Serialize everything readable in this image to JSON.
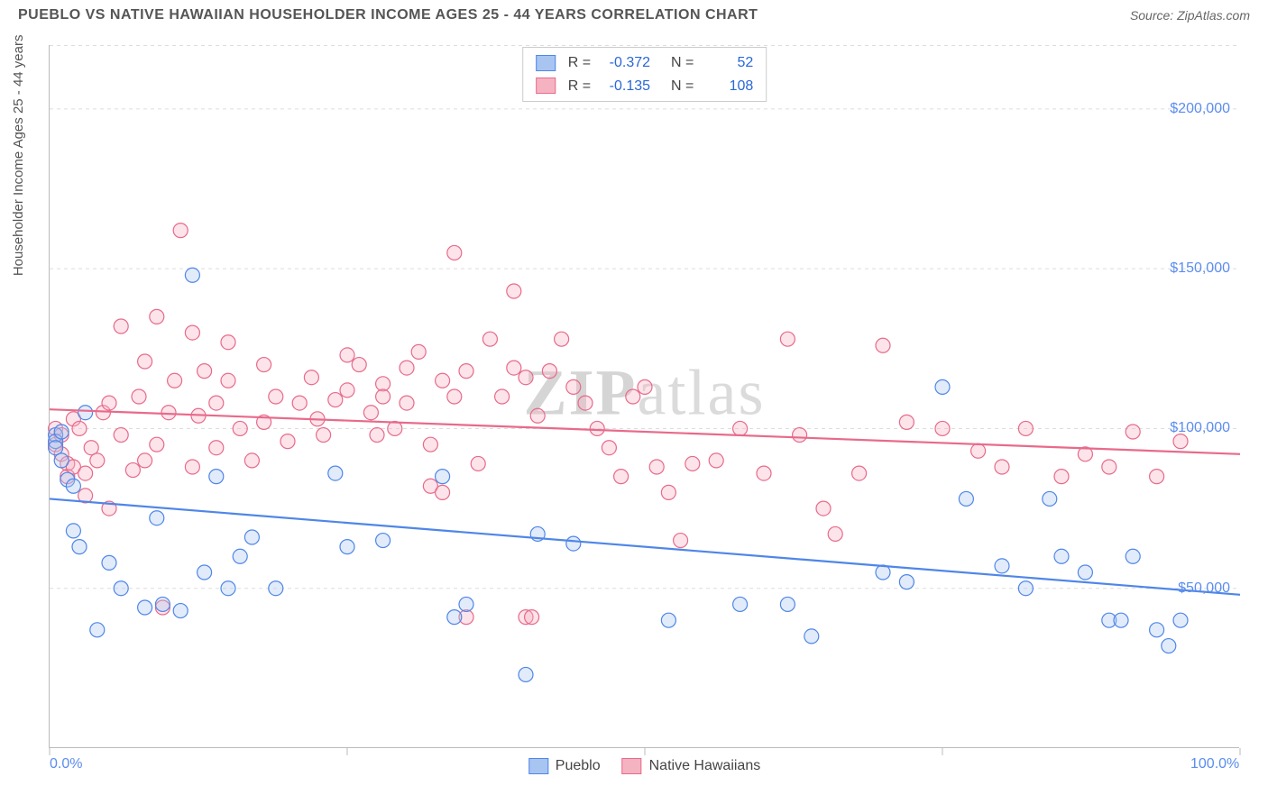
{
  "title": "PUEBLO VS NATIVE HAWAIIAN HOUSEHOLDER INCOME AGES 25 - 44 YEARS CORRELATION CHART",
  "source": "Source: ZipAtlas.com",
  "ylabel": "Householder Income Ages 25 - 44 years",
  "watermark_bold": "ZIP",
  "watermark_rest": "atlas",
  "chart": {
    "type": "scatter",
    "xlim": [
      0,
      100
    ],
    "ylim": [
      0,
      220000
    ],
    "x_ticks": [
      0,
      100
    ],
    "x_tick_labels": [
      "0.0%",
      "100.0%"
    ],
    "x_minor_ticks": [
      25,
      50,
      75
    ],
    "y_ticks": [
      50000,
      100000,
      150000,
      200000
    ],
    "y_tick_labels": [
      "$50,000",
      "$100,000",
      "$150,000",
      "$200,000"
    ],
    "background_color": "#ffffff",
    "grid_color": "#dddddd",
    "axis_color": "#bbbbbb",
    "tick_label_color": "#5b8def",
    "marker_radius": 8,
    "marker_stroke_width": 1.2,
    "marker_fill_opacity": 0.35,
    "line_width": 2.2,
    "series": [
      {
        "name": "Pueblo",
        "color_stroke": "#4f86e8",
        "color_fill": "#a8c5f2",
        "R": "-0.372",
        "N": "52",
        "regression": {
          "y_at_x0": 78000,
          "y_at_x100": 48000
        },
        "points": [
          [
            0.5,
            98000
          ],
          [
            0.5,
            96000
          ],
          [
            0.5,
            94000
          ],
          [
            1,
            99000
          ],
          [
            1,
            90000
          ],
          [
            1.5,
            84000
          ],
          [
            2,
            82000
          ],
          [
            2,
            68000
          ],
          [
            2.5,
            63000
          ],
          [
            3,
            105000
          ],
          [
            4,
            37000
          ],
          [
            5,
            58000
          ],
          [
            6,
            50000
          ],
          [
            8,
            44000
          ],
          [
            9,
            72000
          ],
          [
            9.5,
            45000
          ],
          [
            11,
            43000
          ],
          [
            12,
            148000
          ],
          [
            13,
            55000
          ],
          [
            14,
            85000
          ],
          [
            15,
            50000
          ],
          [
            16,
            60000
          ],
          [
            17,
            66000
          ],
          [
            19,
            50000
          ],
          [
            24,
            86000
          ],
          [
            25,
            63000
          ],
          [
            28,
            65000
          ],
          [
            33,
            85000
          ],
          [
            34,
            41000
          ],
          [
            35,
            45000
          ],
          [
            40,
            23000
          ],
          [
            41,
            67000
          ],
          [
            44,
            64000
          ],
          [
            52,
            40000
          ],
          [
            58,
            45000
          ],
          [
            62,
            45000
          ],
          [
            64,
            35000
          ],
          [
            70,
            55000
          ],
          [
            72,
            52000
          ],
          [
            75,
            113000
          ],
          [
            77,
            78000
          ],
          [
            80,
            57000
          ],
          [
            82,
            50000
          ],
          [
            84,
            78000
          ],
          [
            85,
            60000
          ],
          [
            87,
            55000
          ],
          [
            89,
            40000
          ],
          [
            90,
            40000
          ],
          [
            91,
            60000
          ],
          [
            93,
            37000
          ],
          [
            94,
            32000
          ],
          [
            95,
            40000
          ]
        ]
      },
      {
        "name": "Native Hawaiians",
        "color_stroke": "#e86a8a",
        "color_fill": "#f5b3c2",
        "R": "-0.135",
        "N": "108",
        "regression": {
          "y_at_x0": 106000,
          "y_at_x100": 92000
        },
        "points": [
          [
            0.5,
            100000
          ],
          [
            0.5,
            95000
          ],
          [
            1,
            98000
          ],
          [
            1,
            92000
          ],
          [
            1.5,
            89000
          ],
          [
            1.5,
            85000
          ],
          [
            2,
            103000
          ],
          [
            2,
            88000
          ],
          [
            2.5,
            100000
          ],
          [
            3,
            86000
          ],
          [
            3,
            79000
          ],
          [
            3.5,
            94000
          ],
          [
            4,
            90000
          ],
          [
            4.5,
            105000
          ],
          [
            5,
            108000
          ],
          [
            5,
            75000
          ],
          [
            6,
            132000
          ],
          [
            6,
            98000
          ],
          [
            7,
            87000
          ],
          [
            7.5,
            110000
          ],
          [
            8,
            121000
          ],
          [
            8,
            90000
          ],
          [
            9,
            135000
          ],
          [
            9,
            95000
          ],
          [
            9.5,
            44000
          ],
          [
            10,
            105000
          ],
          [
            10.5,
            115000
          ],
          [
            11,
            162000
          ],
          [
            12,
            88000
          ],
          [
            12,
            130000
          ],
          [
            12.5,
            104000
          ],
          [
            13,
            118000
          ],
          [
            14,
            94000
          ],
          [
            14,
            108000
          ],
          [
            15,
            127000
          ],
          [
            15,
            115000
          ],
          [
            16,
            100000
          ],
          [
            17,
            90000
          ],
          [
            18,
            102000
          ],
          [
            18,
            120000
          ],
          [
            19,
            110000
          ],
          [
            20,
            96000
          ],
          [
            21,
            108000
          ],
          [
            22,
            116000
          ],
          [
            22.5,
            103000
          ],
          [
            23,
            98000
          ],
          [
            24,
            109000
          ],
          [
            25,
            123000
          ],
          [
            25,
            112000
          ],
          [
            26,
            120000
          ],
          [
            27,
            105000
          ],
          [
            27.5,
            98000
          ],
          [
            28,
            114000
          ],
          [
            28,
            110000
          ],
          [
            29,
            100000
          ],
          [
            30,
            119000
          ],
          [
            30,
            108000
          ],
          [
            31,
            124000
          ],
          [
            32,
            95000
          ],
          [
            32,
            82000
          ],
          [
            33,
            115000
          ],
          [
            33,
            80000
          ],
          [
            34,
            155000
          ],
          [
            34,
            110000
          ],
          [
            35,
            118000
          ],
          [
            35,
            41000
          ],
          [
            36,
            89000
          ],
          [
            37,
            128000
          ],
          [
            38,
            110000
          ],
          [
            39,
            119000
          ],
          [
            39,
            143000
          ],
          [
            40,
            116000
          ],
          [
            40,
            41000
          ],
          [
            40.5,
            41000
          ],
          [
            41,
            104000
          ],
          [
            42,
            118000
          ],
          [
            43,
            128000
          ],
          [
            44,
            113000
          ],
          [
            45,
            108000
          ],
          [
            46,
            100000
          ],
          [
            47,
            94000
          ],
          [
            48,
            85000
          ],
          [
            49,
            110000
          ],
          [
            50,
            113000
          ],
          [
            51,
            88000
          ],
          [
            52,
            80000
          ],
          [
            53,
            65000
          ],
          [
            54,
            89000
          ],
          [
            56,
            90000
          ],
          [
            58,
            100000
          ],
          [
            60,
            86000
          ],
          [
            62,
            128000
          ],
          [
            63,
            98000
          ],
          [
            65,
            75000
          ],
          [
            66,
            67000
          ],
          [
            68,
            86000
          ],
          [
            70,
            126000
          ],
          [
            72,
            102000
          ],
          [
            75,
            100000
          ],
          [
            78,
            93000
          ],
          [
            80,
            88000
          ],
          [
            82,
            100000
          ],
          [
            85,
            85000
          ],
          [
            87,
            92000
          ],
          [
            89,
            88000
          ],
          [
            91,
            99000
          ],
          [
            93,
            85000
          ],
          [
            95,
            96000
          ]
        ]
      }
    ]
  },
  "legend_bottom": [
    {
      "label": "Pueblo",
      "stroke": "#4f86e8",
      "fill": "#a8c5f2"
    },
    {
      "label": "Native Hawaiians",
      "stroke": "#e86a8a",
      "fill": "#f5b3c2"
    }
  ]
}
